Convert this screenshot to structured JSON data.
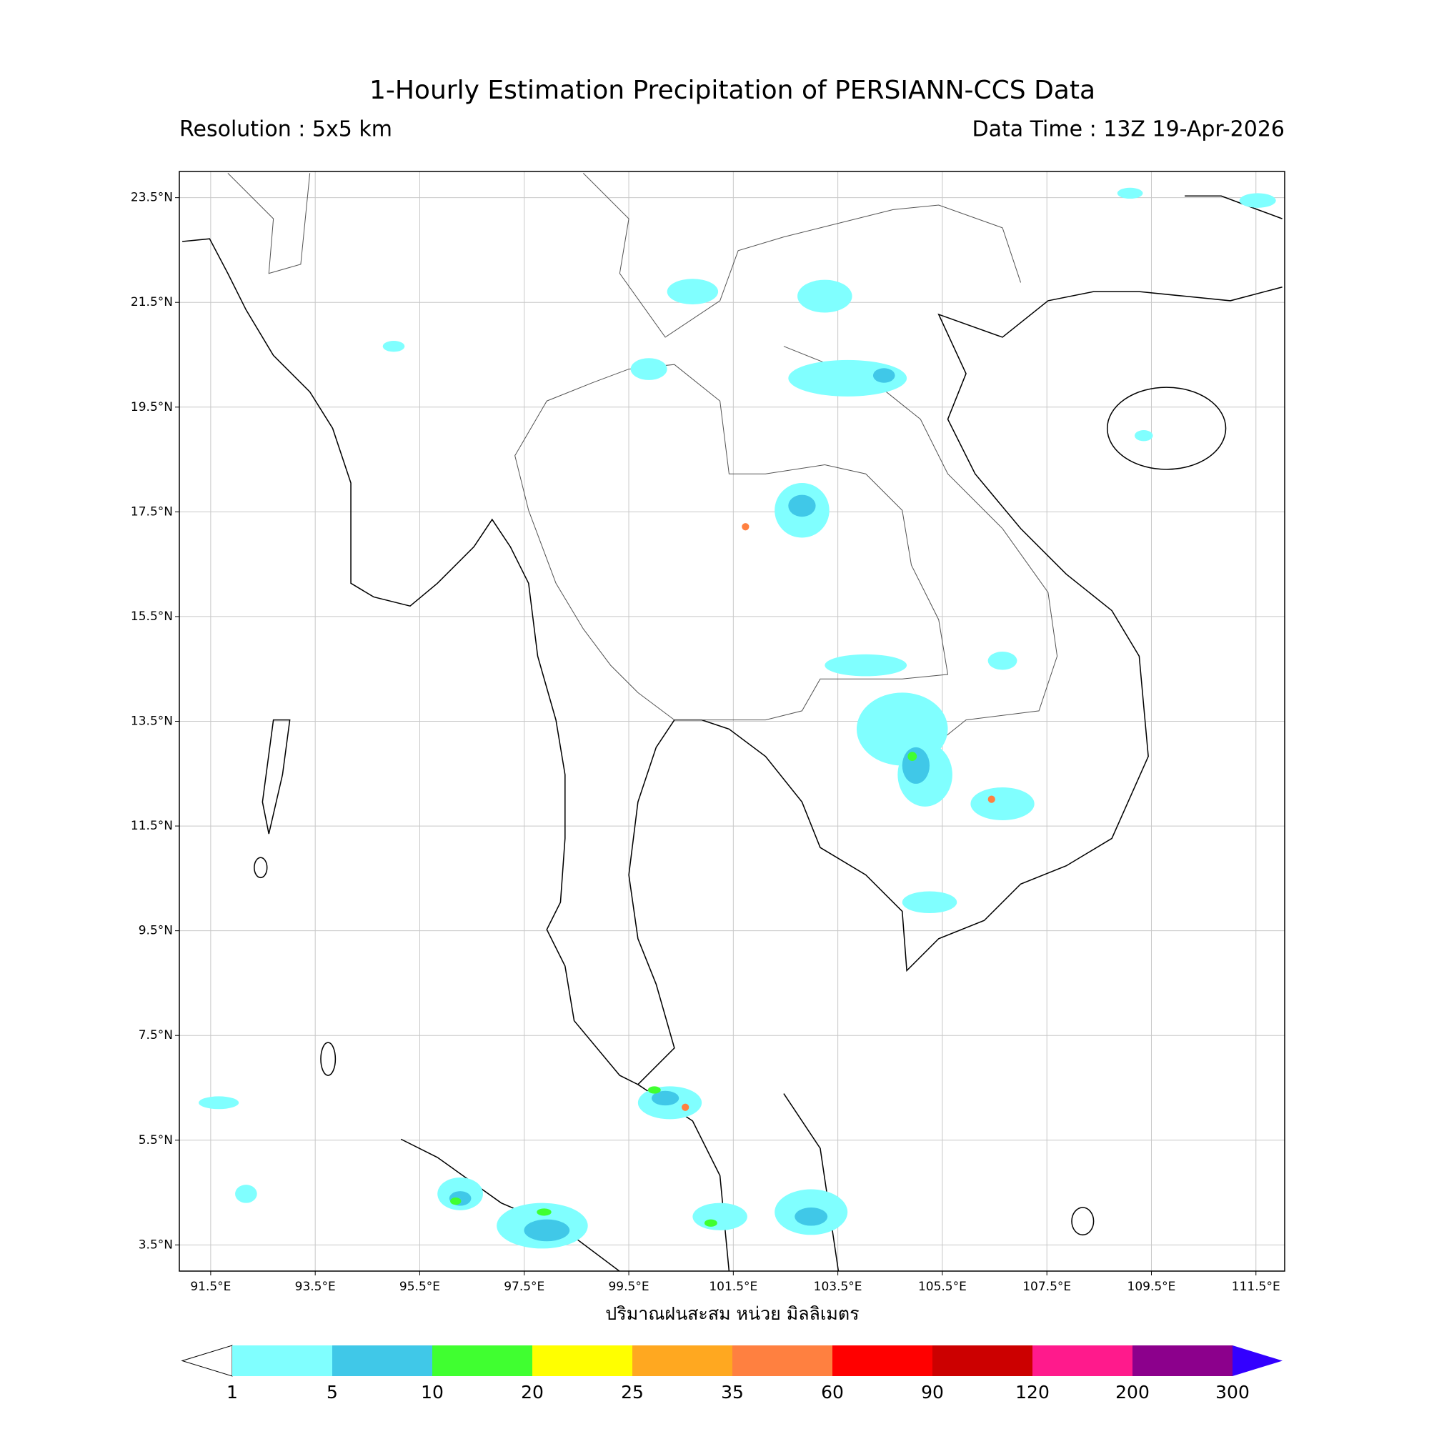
{
  "title": "1-Hourly Estimation Precipitation of PERSIANN-CCS Data",
  "resolution": "Resolution : 5x5 km",
  "data_time": "Data Time : 13Z 19-Apr-2026",
  "map": {
    "lonlim": [
      90.9,
      112.05
    ],
    "latlim": [
      3.0,
      24.0
    ],
    "xticks": [
      {
        "value": 91.5,
        "label": "91.5°E"
      },
      {
        "value": 93.5,
        "label": "93.5°E"
      },
      {
        "value": 95.5,
        "label": "95.5°E"
      },
      {
        "value": 97.5,
        "label": "97.5°E"
      },
      {
        "value": 99.5,
        "label": "99.5°E"
      },
      {
        "value": 101.5,
        "label": "101.5°E"
      },
      {
        "value": 103.5,
        "label": "103.5°E"
      },
      {
        "value": 105.5,
        "label": "105.5°E"
      },
      {
        "value": 107.5,
        "label": "107.5°E"
      },
      {
        "value": 109.5,
        "label": "109.5°E"
      },
      {
        "value": 111.5,
        "label": "111.5°E"
      }
    ],
    "yticks": [
      {
        "value": 23.5,
        "label": "23.5°N"
      },
      {
        "value": 21.5,
        "label": "21.5°N"
      },
      {
        "value": 19.5,
        "label": "19.5°N"
      },
      {
        "value": 17.5,
        "label": "17.5°N"
      },
      {
        "value": 15.5,
        "label": "15.5°N"
      },
      {
        "value": 13.5,
        "label": "13.5°N"
      },
      {
        "value": 11.5,
        "label": "11.5°N"
      },
      {
        "value": 9.5,
        "label": "9.5°N"
      },
      {
        "value": 7.5,
        "label": "7.5°N"
      },
      {
        "value": 5.5,
        "label": "5.5°N"
      },
      {
        "value": 3.5,
        "label": "3.5°N"
      }
    ],
    "grid": true
  },
  "x_label": "ปริมาณฝนสะสม หน่วย มิลลิเมตร",
  "colorbar": {
    "levels": [
      1,
      5,
      10,
      20,
      25,
      35,
      60,
      90,
      120,
      200,
      300
    ],
    "colors": [
      "#80ffff",
      "#40c8e8",
      "#40ff30",
      "#ffff00",
      "#ffa820",
      "#ff8040",
      "#ff0000",
      "#cc0000",
      "#ff1a8c",
      "#8c008c"
    ],
    "under_color": "#ffffff",
    "over_color": "#3300ff"
  }
}
